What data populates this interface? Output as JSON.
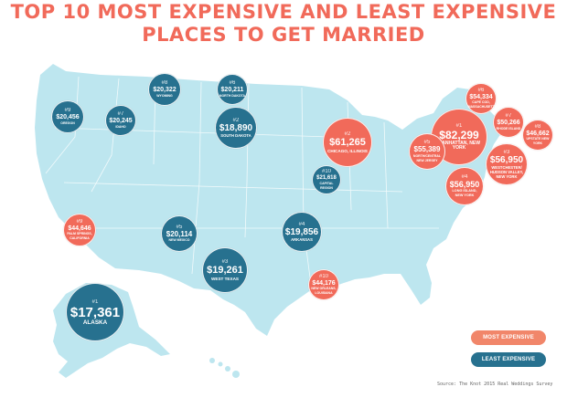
{
  "title_line1": "TOP 10 MOST EXPENSIVE AND LEAST EXPENSIVE",
  "title_line2": "PLACES TO GET MARRIED",
  "colors": {
    "map": "#bde6ef",
    "least": "#27718f",
    "most": "#f16a5a",
    "title": "#f16a5a"
  },
  "legend": {
    "most": "MOST EXPENSIVE",
    "least": "LEAST EXPENSIVE"
  },
  "source": "Source: The Knot 2015 Real Weddings Survey",
  "places": [
    {
      "rank": "#1",
      "price": "$17,361",
      "place": "ALASKA",
      "type": "least"
    },
    {
      "rank": "#3",
      "price": "$19,261",
      "place": "WEST TEXAS",
      "type": "least"
    },
    {
      "rank": "#4",
      "price": "$19,856",
      "place": "ARKANSAS",
      "type": "least"
    },
    {
      "rank": "#2",
      "price": "$18,890",
      "place": "SOUTH DAKOTA",
      "type": "least"
    },
    {
      "rank": "#5",
      "price": "$20,114",
      "place": "NEW MEXICO",
      "type": "least"
    },
    {
      "rank": "#6",
      "price": "$20,211",
      "place": "NORTH DAKOTA",
      "type": "least"
    },
    {
      "rank": "#7",
      "price": "$20,245",
      "place": "IDAHO",
      "type": "least"
    },
    {
      "rank": "#8",
      "price": "$20,322",
      "place": "WYOMING",
      "type": "least"
    },
    {
      "rank": "#9",
      "price": "$20,456",
      "place": "OREGON",
      "type": "least"
    },
    {
      "rank": "#10",
      "price": "$21,618",
      "place": "CAPITAL REGION",
      "type": "least"
    },
    {
      "rank": "#1",
      "price": "$82,299",
      "place": "MANHATTAN, NEW YORK",
      "type": "most"
    },
    {
      "rank": "#2",
      "price": "$61,265",
      "place": "CHICAGO, ILLINOIS",
      "type": "most"
    },
    {
      "rank": "#3",
      "price": "$56,950",
      "place": "WESTCHESTER/ HUDSON VALLEY, NEW YORK",
      "type": "most"
    },
    {
      "rank": "#4",
      "price": "$56,950",
      "place": "LONG ISLAND, NEW YORK",
      "type": "most"
    },
    {
      "rank": "#5",
      "price": "$55,389",
      "place": "NORTH/CENTRAL NEW JERSEY",
      "type": "most"
    },
    {
      "rank": "#6",
      "price": "$54,334",
      "place": "CAPE COD, MASSACHUSETTS",
      "type": "most"
    },
    {
      "rank": "#7",
      "price": "$50,266",
      "place": "RHODE ISLAND",
      "type": "most"
    },
    {
      "rank": "#8",
      "price": "$46,662",
      "place": "UPSTATE NEW YORK",
      "type": "most"
    },
    {
      "rank": "#9",
      "price": "$44,646",
      "place": "PALM SPRINGS, CALIFORNIA",
      "type": "most"
    },
    {
      "rank": "#10",
      "price": "$44,176",
      "place": "NEW ORLEANS, LOUISIANA",
      "type": "most"
    }
  ]
}
